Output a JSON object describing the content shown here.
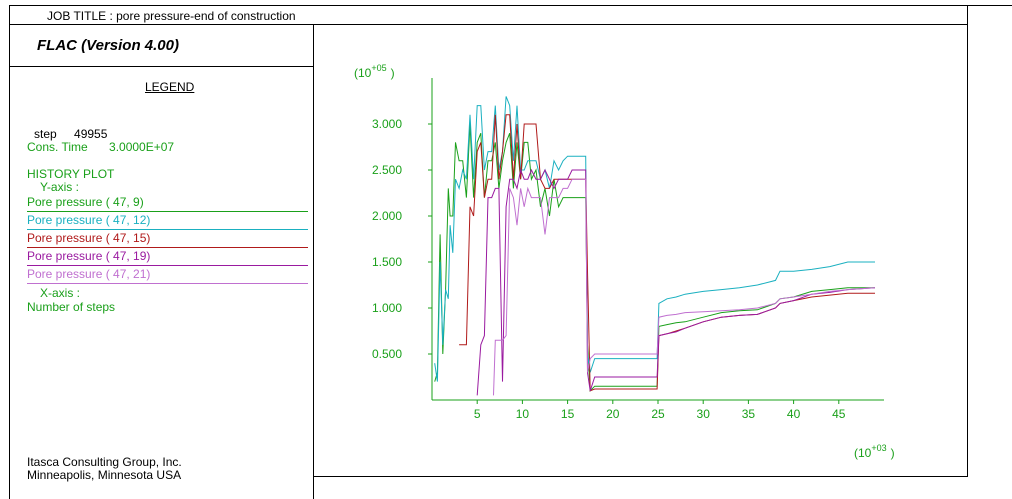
{
  "header": {
    "job_title": "JOB TITLE : pore pressure-end of construction"
  },
  "app": {
    "name": "FLAC (Version 4.00)"
  },
  "legend": {
    "title": "LEGEND",
    "step_label": "step",
    "step_value": "49955",
    "cons_time_label": "Cons. Time",
    "cons_time_value": "3.0000E+07",
    "history_plot": "HISTORY PLOT",
    "y_axis_label": "Y-axis :",
    "x_axis_label": "X-axis :",
    "x_axis_value": "Number of steps",
    "entries": [
      {
        "label": "Pore pressure (  47,   9)",
        "color": "#1aa01a"
      },
      {
        "label": "Pore pressure (  47,  12)",
        "color": "#1ab0c0"
      },
      {
        "label": "Pore pressure (  47,  15)",
        "color": "#b01a1a"
      },
      {
        "label": "Pore pressure (  47,  19)",
        "color": "#9a1aa0"
      },
      {
        "label": "Pore pressure (  47,  21)",
        "color": "#c070d0"
      }
    ]
  },
  "footer": {
    "company": "Itasca Consulting Group, Inc.",
    "location": "Minneapolis, Minnesota  USA"
  },
  "chart_data": {
    "type": "line",
    "ylabel_mult": "(10",
    "ylabel_exp": "+05",
    "xlabel_mult": "(10",
    "xlabel_exp": "+03",
    "close_paren": ")",
    "xlim": [
      0,
      50
    ],
    "ylim": [
      0,
      3.5
    ],
    "x_ticks": [
      "5",
      "10",
      "15",
      "20",
      "25",
      "30",
      "35",
      "40",
      "45"
    ],
    "x_tick_values": [
      5,
      10,
      15,
      20,
      25,
      30,
      35,
      40,
      45
    ],
    "y_ticks": [
      "0.500",
      "1.000",
      "1.500",
      "2.000",
      "2.500",
      "3.000"
    ],
    "y_tick_values": [
      0.5,
      1.0,
      1.5,
      2.0,
      2.5,
      3.0
    ],
    "axis_color": "#1aa01a",
    "series": [
      {
        "name": "Pore pressure (  47,   9)",
        "color": "#1aa01a",
        "x": [
          0.3,
          0.6,
          0.9,
          1.2,
          1.5,
          1.8,
          2.0,
          2.3,
          2.6,
          3.0,
          3.4,
          3.8,
          4.2,
          4.6,
          5.0,
          5.4,
          5.8,
          6.2,
          6.6,
          7.0,
          7.4,
          7.8,
          8.2,
          8.6,
          9.0,
          9.4,
          9.8,
          10.2,
          10.6,
          11.0,
          11.5,
          12.0,
          12.5,
          13.0,
          13.5,
          14.0,
          14.5,
          15.0,
          15.5,
          16.0,
          16.5,
          17.0,
          17.2,
          17.5,
          18,
          19,
          20,
          21,
          22,
          23,
          24,
          24.9,
          25.1,
          26,
          27,
          28,
          30,
          32,
          34,
          36,
          38,
          38.5,
          40,
          42,
          44,
          46,
          49
        ],
        "y": [
          0.2,
          0.3,
          1.8,
          0.5,
          1.2,
          2.3,
          2.0,
          2.0,
          2.8,
          2.6,
          2.6,
          2.2,
          3.0,
          2.2,
          2.8,
          2.9,
          2.2,
          2.6,
          2.6,
          2.8,
          2.3,
          2.6,
          2.8,
          2.9,
          2.3,
          2.8,
          2.4,
          2.8,
          2.8,
          2.4,
          2.5,
          2.1,
          2.3,
          2.0,
          2.4,
          2.1,
          2.2,
          2.2,
          2.2,
          2.2,
          2.2,
          2.2,
          0.6,
          0.1,
          0.15,
          0.15,
          0.15,
          0.15,
          0.15,
          0.15,
          0.15,
          0.15,
          0.8,
          0.82,
          0.84,
          0.85,
          0.9,
          0.95,
          0.97,
          0.98,
          1.05,
          1.1,
          1.12,
          1.18,
          1.2,
          1.22,
          1.22
        ]
      },
      {
        "name": "Pore pressure (  47,  12)",
        "color": "#1ab0c0",
        "x": [
          0.3,
          0.6,
          0.9,
          1.2,
          1.5,
          1.8,
          2.0,
          2.3,
          2.6,
          3.0,
          3.4,
          3.8,
          4.2,
          4.6,
          5.0,
          5.4,
          5.8,
          6.2,
          6.6,
          7.0,
          7.4,
          7.8,
          8.2,
          8.6,
          9.0,
          9.4,
          9.8,
          10.2,
          10.6,
          11.0,
          11.5,
          12.0,
          12.5,
          13.0,
          13.5,
          14.0,
          14.5,
          15.0,
          15.5,
          16.0,
          16.5,
          17.0,
          17.2,
          17.5,
          18,
          19,
          20,
          21,
          22,
          23,
          24,
          24.9,
          25.1,
          26,
          27,
          28,
          30,
          32,
          34,
          36,
          38,
          38.5,
          40,
          42,
          44,
          46,
          49
        ],
        "y": [
          0.4,
          0.2,
          1.5,
          0.6,
          1.2,
          1.1,
          1.9,
          1.6,
          2.4,
          2.3,
          2.5,
          2.4,
          3.1,
          2.4,
          3.2,
          3.2,
          2.5,
          2.7,
          2.7,
          3.2,
          2.5,
          2.7,
          3.3,
          3.2,
          2.6,
          3.2,
          2.5,
          2.5,
          2.6,
          2.6,
          2.6,
          2.4,
          2.5,
          2.3,
          2.6,
          2.5,
          2.6,
          2.65,
          2.65,
          2.65,
          2.65,
          2.65,
          0.5,
          0.3,
          0.45,
          0.45,
          0.45,
          0.45,
          0.45,
          0.45,
          0.45,
          0.45,
          1.05,
          1.1,
          1.12,
          1.15,
          1.18,
          1.2,
          1.22,
          1.25,
          1.3,
          1.4,
          1.4,
          1.42,
          1.45,
          1.5,
          1.5
        ]
      },
      {
        "name": "Pore pressure (  47,  15)",
        "color": "#b01a1a",
        "x": [
          3.0,
          3.4,
          3.8,
          4.2,
          4.6,
          5.0,
          5.4,
          5.8,
          6.2,
          6.6,
          7.0,
          7.4,
          7.8,
          8.2,
          8.6,
          9.0,
          9.4,
          9.8,
          10.2,
          10.6,
          11.0,
          11.5,
          12.0,
          12.5,
          13.0,
          13.5,
          14.0,
          14.5,
          15.0,
          15.5,
          16.0,
          16.5,
          17.0,
          17.2,
          17.5,
          18,
          19,
          20,
          21,
          22,
          23,
          24,
          24.9,
          25.1,
          26,
          27,
          28,
          30,
          32,
          34,
          36,
          38,
          38.5,
          40,
          42,
          44,
          46,
          49
        ],
        "y": [
          0.6,
          0.6,
          0.6,
          2.1,
          2.0,
          2.7,
          2.8,
          2.2,
          2.4,
          2.4,
          3.1,
          2.4,
          2.7,
          3.1,
          3.1,
          2.4,
          3.0,
          2.4,
          3.0,
          3.0,
          3.0,
          3.0,
          2.4,
          2.3,
          2.3,
          2.4,
          2.4,
          2.4,
          2.4,
          2.4,
          2.4,
          2.4,
          2.4,
          1.4,
          0.1,
          0.12,
          0.12,
          0.12,
          0.12,
          0.12,
          0.12,
          0.12,
          0.12,
          0.7,
          0.72,
          0.75,
          0.78,
          0.85,
          0.9,
          0.92,
          0.93,
          1.0,
          1.05,
          1.08,
          1.12,
          1.14,
          1.16,
          1.16
        ]
      },
      {
        "name": "Pore pressure (  47,  19)",
        "color": "#9a1aa0",
        "x": [
          5.0,
          5.4,
          5.8,
          6.2,
          6.6,
          7.0,
          7.4,
          7.8,
          8.2,
          8.6,
          9.0,
          9.4,
          9.8,
          10.2,
          10.6,
          11.0,
          11.5,
          12.0,
          12.5,
          13.0,
          13.5,
          14.0,
          14.5,
          15.0,
          15.5,
          16.0,
          16.5,
          17.0,
          17.2,
          17.5,
          18,
          19,
          20,
          21,
          22,
          23,
          24,
          24.9,
          25.1,
          26,
          27,
          28,
          30,
          32,
          34,
          36,
          38,
          38.5,
          40,
          42,
          44,
          46,
          49
        ],
        "y": [
          0.05,
          0.6,
          0.7,
          2.2,
          2.2,
          2.3,
          2.3,
          0.2,
          2.1,
          2.4,
          2.4,
          2.3,
          2.5,
          2.4,
          2.4,
          2.5,
          2.4,
          2.4,
          2.5,
          2.4,
          2.3,
          2.4,
          2.4,
          2.4,
          2.5,
          2.5,
          2.5,
          2.5,
          0.3,
          0.1,
          0.25,
          0.25,
          0.25,
          0.25,
          0.25,
          0.25,
          0.25,
          0.25,
          0.7,
          0.72,
          0.74,
          0.78,
          0.85,
          0.9,
          0.92,
          0.93,
          1.0,
          1.05,
          1.08,
          1.15,
          1.17,
          1.2,
          1.22
        ]
      },
      {
        "name": "Pore pressure (  47,  21)",
        "color": "#c070d0",
        "x": [
          6.8,
          7.0,
          7.4,
          7.8,
          8.2,
          8.6,
          9.0,
          9.4,
          9.8,
          10.2,
          10.6,
          11.0,
          11.5,
          12.0,
          12.5,
          13.0,
          13.5,
          14.0,
          14.5,
          15.0,
          15.5,
          16.0,
          16.5,
          17.0,
          17.2,
          17.5,
          18,
          19,
          20,
          21,
          22,
          23,
          24,
          24.9,
          25.1,
          26,
          27,
          28,
          30,
          32,
          34,
          36,
          38,
          38.5,
          40,
          42,
          44,
          46,
          49
        ],
        "y": [
          0.05,
          0.65,
          0.65,
          0.65,
          0.7,
          2.3,
          2.2,
          1.9,
          2.3,
          2.1,
          2.3,
          2.2,
          2.2,
          2.2,
          1.8,
          2.2,
          2.2,
          2.2,
          2.3,
          2.3,
          2.4,
          2.4,
          2.4,
          2.4,
          0.3,
          0.45,
          0.5,
          0.5,
          0.5,
          0.5,
          0.5,
          0.5,
          0.5,
          0.5,
          0.9,
          0.92,
          0.93,
          0.95,
          0.96,
          0.97,
          0.98,
          1.0,
          1.05,
          1.1,
          1.12,
          1.15,
          1.18,
          1.2,
          1.22
        ]
      }
    ]
  }
}
